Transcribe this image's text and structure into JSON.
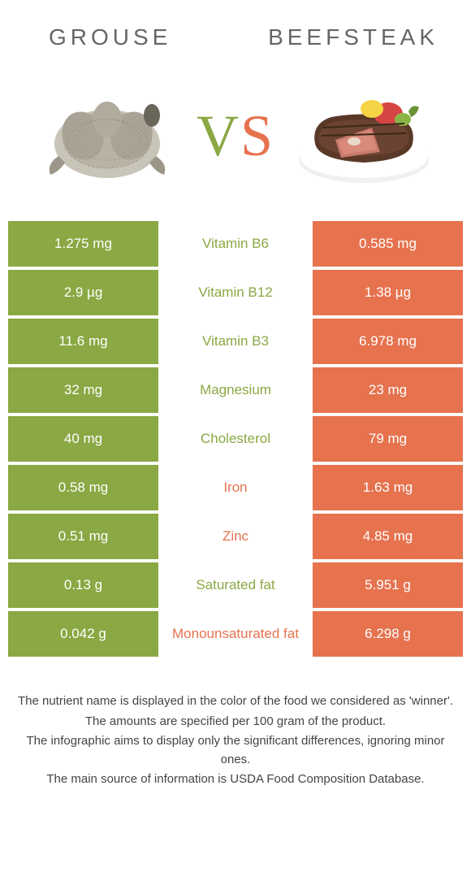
{
  "header": {
    "left_title": "Grouse",
    "right_title": "Beefsteak"
  },
  "vs": {
    "v": "V",
    "s": "S"
  },
  "colors": {
    "green": "#8aa843",
    "red": "#e6724e",
    "background": "#ffffff",
    "text": "#333333"
  },
  "table": {
    "rows": [
      {
        "left": "1.275 mg",
        "label": "Vitamin B6",
        "right": "0.585 mg",
        "winner": "green"
      },
      {
        "left": "2.9 µg",
        "label": "Vitamin B12",
        "right": "1.38 µg",
        "winner": "green"
      },
      {
        "left": "11.6 mg",
        "label": "Vitamin B3",
        "right": "6.978 mg",
        "winner": "green"
      },
      {
        "left": "32 mg",
        "label": "Magnesium",
        "right": "23 mg",
        "winner": "green"
      },
      {
        "left": "40 mg",
        "label": "Cholesterol",
        "right": "79 mg",
        "winner": "green"
      },
      {
        "left": "0.58 mg",
        "label": "Iron",
        "right": "1.63 mg",
        "winner": "red"
      },
      {
        "left": "0.51 mg",
        "label": "Zinc",
        "right": "4.85 mg",
        "winner": "red"
      },
      {
        "left": "0.13 g",
        "label": "Saturated fat",
        "right": "5.951 g",
        "winner": "green"
      },
      {
        "left": "0.042 g",
        "label": "Monounsaturated fat",
        "right": "6.298 g",
        "winner": "red"
      }
    ]
  },
  "footer": {
    "line1": "The nutrient name is displayed in the color of the food we considered as 'winner'.",
    "line2": "The amounts are specified per 100 gram of the product.",
    "line3": "The infographic aims to display only the significant differences, ignoring minor ones.",
    "line4": "The main source of information is USDA Food Composition Database."
  }
}
